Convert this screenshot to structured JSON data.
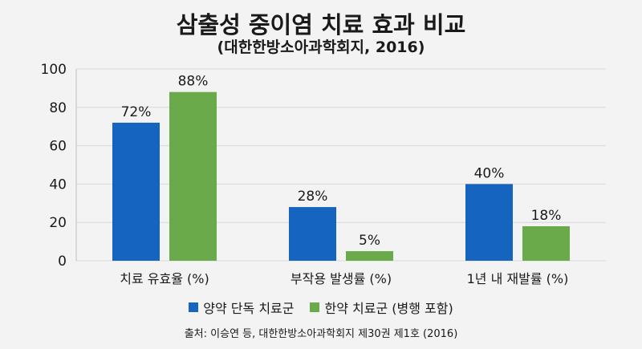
{
  "chart_data": {
    "type": "bar",
    "title": "삼출성 중이염 치료 효과 비교",
    "subtitle": "(대한한방소아과학회지, 2016)",
    "categories": [
      "치료 유효율 (%)",
      "부작용 발생률 (%)",
      "1년 내 재발률 (%)"
    ],
    "series": [
      {
        "name": "양약 단독 치료군",
        "color": "#1565c0",
        "values": [
          72,
          28,
          40
        ],
        "labels": [
          "72%",
          "28%",
          "40%"
        ]
      },
      {
        "name": "한약 치료군 (병행 포함)",
        "color": "#6aaa4a",
        "values": [
          88,
          5,
          18
        ],
        "labels": [
          "88%",
          "5%",
          "18%"
        ]
      }
    ],
    "ylim": [
      0,
      100
    ],
    "yticks": [
      "0",
      "20",
      "40",
      "60",
      "80",
      "100"
    ],
    "grid": true,
    "legend_position": "bottom"
  },
  "source": "출처: 이승연 등, 대한한방소아과학회지 제30권 제1호 (2016)"
}
